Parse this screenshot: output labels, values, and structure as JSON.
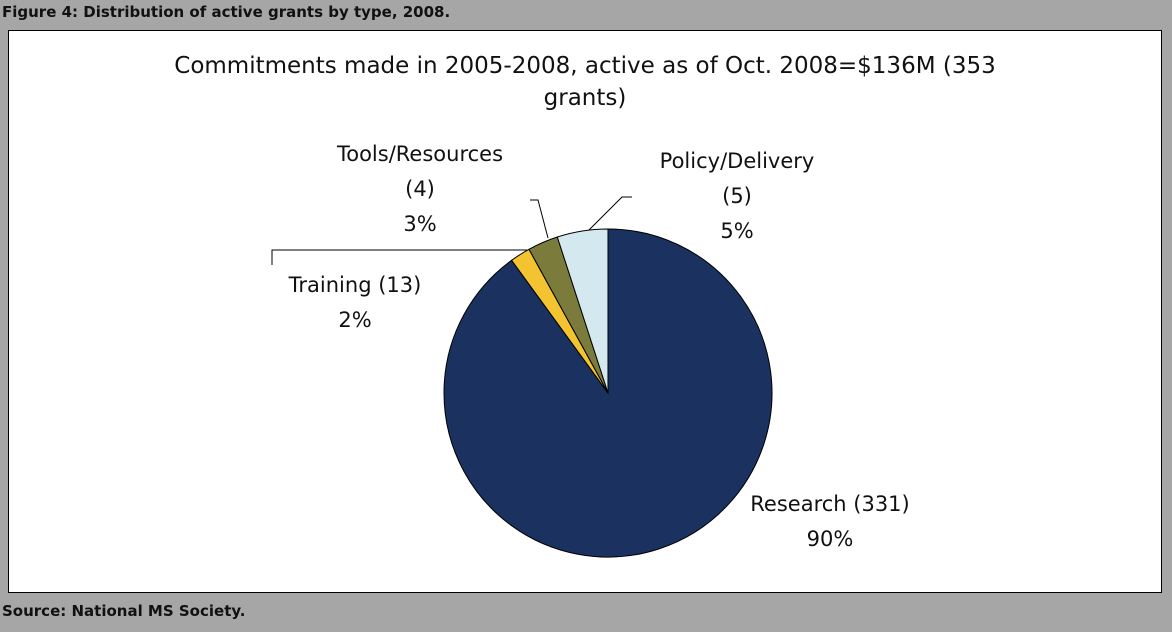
{
  "figure_title": "Figure 4: Distribution of active grants by type, 2008.",
  "source": "Source: National MS Society.",
  "chart_data": {
    "type": "pie",
    "title": "Commitments made in 2005-2008, active as of Oct. 2008=$136M (353 grants)",
    "categories": [
      "Research (331)",
      "Training (13)",
      "Tools/Resources (4)",
      "Policy/Delivery (5)"
    ],
    "values": [
      90,
      2,
      3,
      5
    ],
    "value_labels": [
      "90%",
      "2%",
      "3%",
      "5%"
    ],
    "colors": [
      "#1b3260",
      "#f3c331",
      "#7b7b3b",
      "#d3e9ef"
    ]
  }
}
